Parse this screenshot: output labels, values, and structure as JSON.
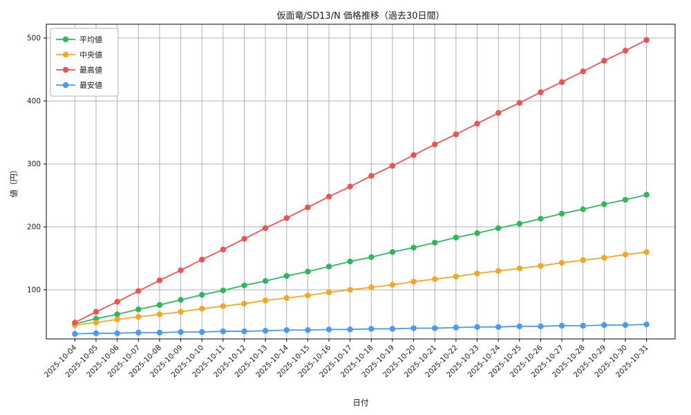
{
  "chart_data": {
    "type": "line",
    "title": "仮面竜/SD13/N 価格推移（過去30日間）",
    "xlabel": "日付",
    "ylabel": "値（円）",
    "grid": true,
    "legend_position": "upper left",
    "ylim": [
      22,
      522
    ],
    "yticks": [
      100,
      200,
      300,
      400,
      500
    ],
    "grid_color": "#b0b0b0",
    "axis_color": "#000000",
    "background_color": "#ffffff",
    "x": [
      "2025-10-04",
      "2025-10-05",
      "2025-10-06",
      "2025-10-07",
      "2025-10-08",
      "2025-10-09",
      "2025-10-10",
      "2025-10-11",
      "2025-10-12",
      "2025-10-13",
      "2025-10-14",
      "2025-10-15",
      "2025-10-16",
      "2025-10-17",
      "2025-10-18",
      "2025-10-19",
      "2025-10-20",
      "2025-10-21",
      "2025-10-22",
      "2025-10-23",
      "2025-10-24",
      "2025-10-25",
      "2025-10-26",
      "2025-10-27",
      "2025-10-28",
      "2025-10-29",
      "2025-10-30",
      "2025-10-31"
    ],
    "series": [
      {
        "name": "平均値",
        "color": "#2eb85c",
        "values": [
          46,
          54,
          61,
          69,
          76,
          84,
          92,
          99,
          107,
          114,
          122,
          129,
          137,
          145,
          152,
          160,
          167,
          175,
          183,
          190,
          198,
          205,
          213,
          221,
          228,
          236,
          243,
          251
        ]
      },
      {
        "name": "中央値",
        "color": "#f5a623",
        "values": [
          44,
          48,
          53,
          57,
          61,
          65,
          70,
          74,
          78,
          83,
          87,
          91,
          96,
          100,
          104,
          108,
          113,
          117,
          121,
          126,
          130,
          134,
          138,
          143,
          147,
          151,
          156,
          160
        ]
      },
      {
        "name": "最高値",
        "color": "#ef5350",
        "values": [
          48,
          65,
          81,
          98,
          115,
          131,
          148,
          164,
          181,
          198,
          214,
          231,
          248,
          264,
          281,
          297,
          314,
          331,
          347,
          364,
          381,
          397,
          414,
          430,
          447,
          464,
          480,
          497
        ]
      },
      {
        "name": "最安値",
        "color": "#4a98f7",
        "values": [
          30,
          31,
          31,
          32,
          32,
          33,
          33,
          34,
          34,
          35,
          36,
          36,
          37,
          37,
          38,
          38,
          39,
          39,
          40,
          41,
          41,
          42,
          42,
          43,
          43,
          44,
          44,
          45
        ]
      }
    ]
  }
}
